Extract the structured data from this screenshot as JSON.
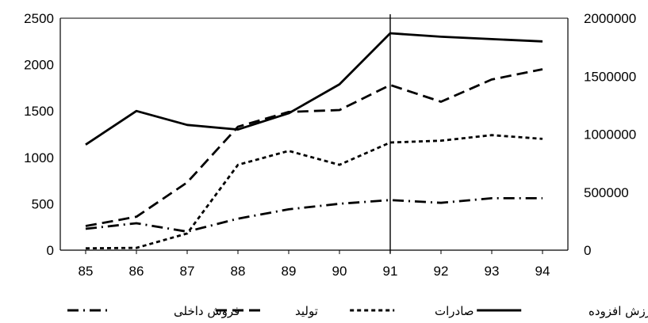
{
  "chart_data": {
    "type": "line",
    "categories": [
      "85",
      "86",
      "87",
      "88",
      "89",
      "90",
      "91",
      "92",
      "93",
      "94"
    ],
    "ylim_left": [
      0,
      2500
    ],
    "yticks_left": [
      "0",
      "500",
      "1000",
      "1500",
      "2000",
      "2500"
    ],
    "ylim_right": [
      0,
      2000000
    ],
    "yticks_right": [
      "0",
      "500000",
      "1000000",
      "1500000",
      "2000000"
    ],
    "vertical_marker_category": "91",
    "grid": false,
    "legend_position": "bottom",
    "series": [
      {
        "name": "ارزش افزوده",
        "axis": "right",
        "style": "solid",
        "values": [
          910000,
          1200000,
          1080000,
          1040000,
          1180000,
          1430000,
          1870000,
          1840000,
          1820000,
          1800000
        ]
      },
      {
        "name": "صادرات",
        "axis": "left",
        "style": "short-dash",
        "values": [
          20,
          25,
          180,
          920,
          1070,
          920,
          1160,
          1180,
          1240,
          1200
        ]
      },
      {
        "name": "تولید",
        "axis": "left",
        "style": "long-dash",
        "values": [
          260,
          360,
          730,
          1330,
          1490,
          1510,
          1780,
          1600,
          1840,
          1950
        ]
      },
      {
        "name": "فروش داخلی",
        "axis": "left",
        "style": "dash-dot",
        "values": [
          230,
          290,
          200,
          340,
          440,
          500,
          540,
          510,
          560,
          560
        ]
      }
    ]
  }
}
